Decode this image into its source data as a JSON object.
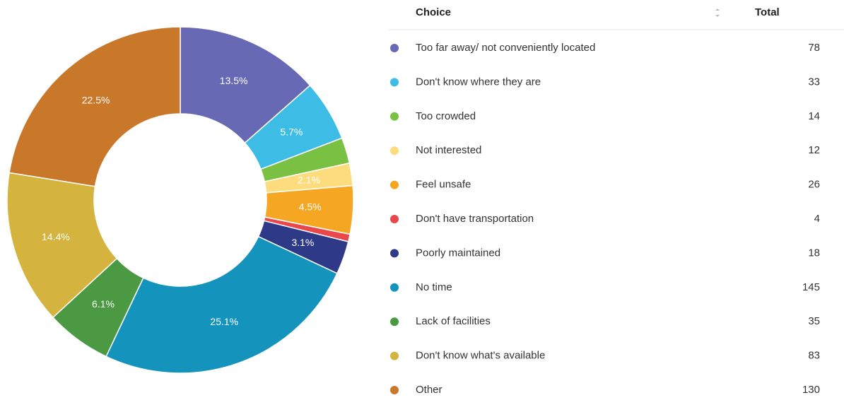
{
  "chart_data": {
    "type": "donut",
    "table_headers": [
      "Choice",
      "Total"
    ],
    "categories": [
      "Too far away/ not conveniently located",
      "Don't know where they are",
      "Too crowded",
      "Not interested",
      "Feel unsafe",
      "Don't have transportation",
      "Poorly maintained",
      "No time",
      "Lack of facilities",
      "Don't know what's available",
      "Other"
    ],
    "totals": [
      78,
      33,
      14,
      12,
      26,
      4,
      18,
      145,
      35,
      83,
      130
    ],
    "values": [
      13.5,
      5.7,
      2.4,
      2.1,
      4.5,
      0.7,
      3.1,
      25.1,
      6.1,
      14.4,
      22.5
    ],
    "value_labels": [
      "13.5%",
      "5.7%",
      null,
      "2.1%",
      "4.5%",
      null,
      "3.1%",
      "25.1%",
      "6.1%",
      "14.4%",
      "22.5%"
    ],
    "colors": [
      "#6869b4",
      "#3dbde6",
      "#7ac143",
      "#fcdc7c",
      "#f5a623",
      "#e8474c",
      "#2e3a87",
      "#1493bd",
      "#4b9a43",
      "#d4b33e",
      "#c9782a"
    ]
  }
}
